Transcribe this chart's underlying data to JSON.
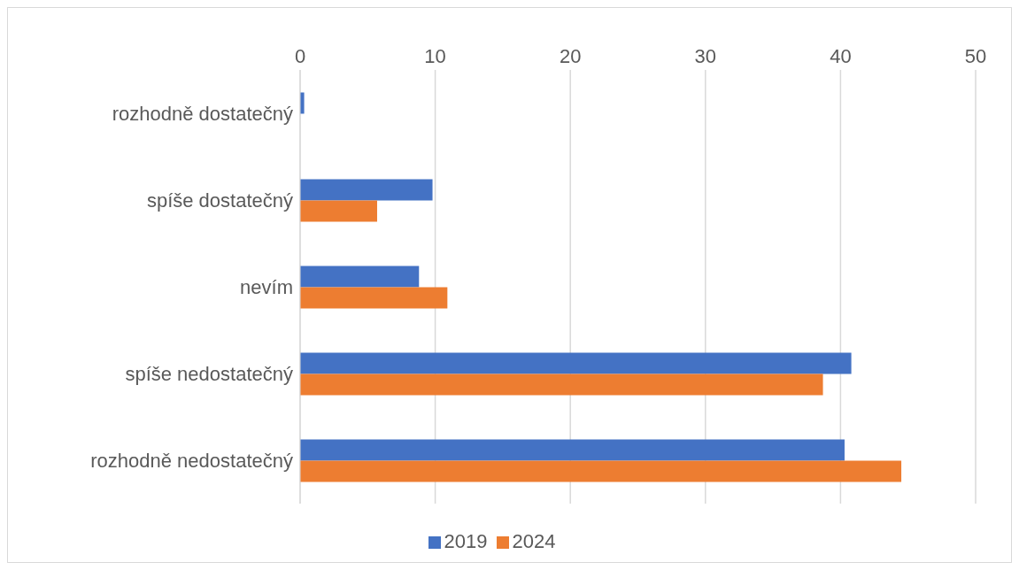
{
  "chart_data": {
    "type": "bar",
    "orientation": "horizontal",
    "categories": [
      "rozhodně dostatečný",
      "spíše dostatečný",
      "nevím",
      "spíše nedostatečný",
      "rozhodně nedostatečný"
    ],
    "series": [
      {
        "name": "2019",
        "color": "#4472c4",
        "values": [
          0.3,
          9.8,
          8.8,
          40.8,
          40.3
        ]
      },
      {
        "name": "2024",
        "color": "#ed7d31",
        "values": [
          0,
          5.7,
          10.9,
          38.7,
          44.5
        ]
      }
    ],
    "xlim": [
      0,
      50
    ],
    "xticks": [
      0,
      10,
      20,
      30,
      40,
      50
    ],
    "grid": "x",
    "legend": "bottom"
  }
}
